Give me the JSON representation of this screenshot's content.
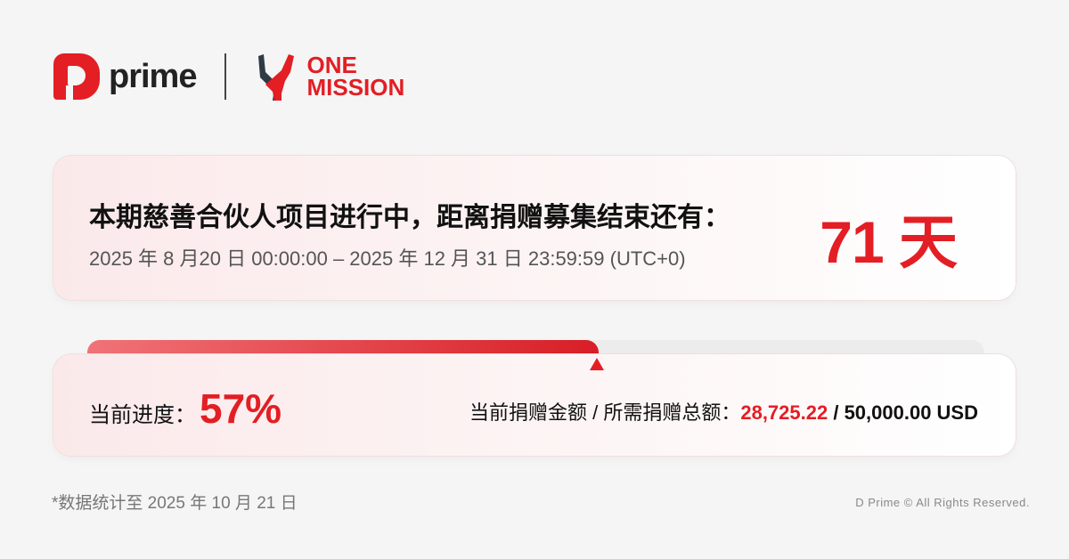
{
  "header": {
    "brand": "prime",
    "partner_line1": "ONE",
    "partner_line2": "MISSION"
  },
  "countdown": {
    "title": "本期慈善合伙人项目进行中，距离捐赠募集结束还有：",
    "date_range": "2025 年 8 月20 日 00:00:00 – 2025 年 12 月 31 日 23:59:59 (UTC+0)",
    "days_left": "71 天"
  },
  "progress": {
    "percent_value": 57,
    "label": "当前进度：",
    "percent_text": "57%",
    "amount_label": "当前捐赠金额 / 所需捐赠总额：",
    "current_amount": "28,725.22",
    "separator": " / ",
    "target_amount": "50,000.00 USD",
    "color": "#e31e24"
  },
  "footer": {
    "note": "*数据统计至 2025 年 10 月 21 日",
    "copyright": "D Prime © All Rights Reserved."
  }
}
